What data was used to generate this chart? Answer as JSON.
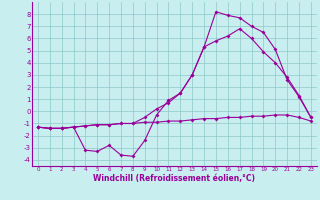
{
  "xlabel": "Windchill (Refroidissement éolien,°C)",
  "bg_color": "#c8eef0",
  "grid_color": "#8ec8c8",
  "line_color": "#990099",
  "xlim": [
    -0.5,
    23.5
  ],
  "ylim": [
    -4.5,
    9.0
  ],
  "xticks": [
    0,
    1,
    2,
    3,
    4,
    5,
    6,
    7,
    8,
    9,
    10,
    11,
    12,
    13,
    14,
    15,
    16,
    17,
    18,
    19,
    20,
    21,
    22,
    23
  ],
  "yticks": [
    -4,
    -3,
    -2,
    -1,
    0,
    1,
    2,
    3,
    4,
    5,
    6,
    7,
    8
  ],
  "line1_x": [
    0,
    1,
    2,
    3,
    4,
    5,
    6,
    7,
    8,
    9,
    10,
    11,
    12,
    13,
    14,
    15,
    16,
    17,
    18,
    19,
    20,
    21,
    22,
    23
  ],
  "line1_y": [
    -1.3,
    -1.4,
    -1.4,
    -1.3,
    -1.2,
    -1.1,
    -1.1,
    -1.0,
    -1.0,
    -0.9,
    -0.9,
    -0.8,
    -0.8,
    -0.7,
    -0.6,
    -0.6,
    -0.5,
    -0.5,
    -0.4,
    -0.4,
    -0.3,
    -0.3,
    -0.5,
    -0.8
  ],
  "line2_x": [
    0,
    1,
    2,
    3,
    4,
    5,
    6,
    7,
    8,
    9,
    10,
    11,
    12,
    13,
    14,
    15,
    16,
    17,
    18,
    19,
    20,
    21,
    22,
    23
  ],
  "line2_y": [
    -1.3,
    -1.4,
    -1.4,
    -1.3,
    -3.2,
    -3.3,
    -2.8,
    -3.6,
    -3.7,
    -2.4,
    -0.3,
    0.9,
    1.5,
    3.0,
    5.3,
    8.2,
    7.9,
    7.7,
    7.0,
    6.5,
    5.1,
    2.6,
    1.2,
    -0.5
  ],
  "line3_x": [
    0,
    1,
    2,
    3,
    4,
    5,
    6,
    7,
    8,
    9,
    10,
    11,
    12,
    13,
    14,
    15,
    16,
    17,
    18,
    19,
    20,
    21,
    22,
    23
  ],
  "line3_y": [
    -1.3,
    -1.4,
    -1.4,
    -1.3,
    -1.2,
    -1.1,
    -1.1,
    -1.0,
    -1.0,
    -0.5,
    0.2,
    0.7,
    1.5,
    3.0,
    5.3,
    5.8,
    6.2,
    6.8,
    6.0,
    4.9,
    4.0,
    2.8,
    1.3,
    -0.5
  ]
}
